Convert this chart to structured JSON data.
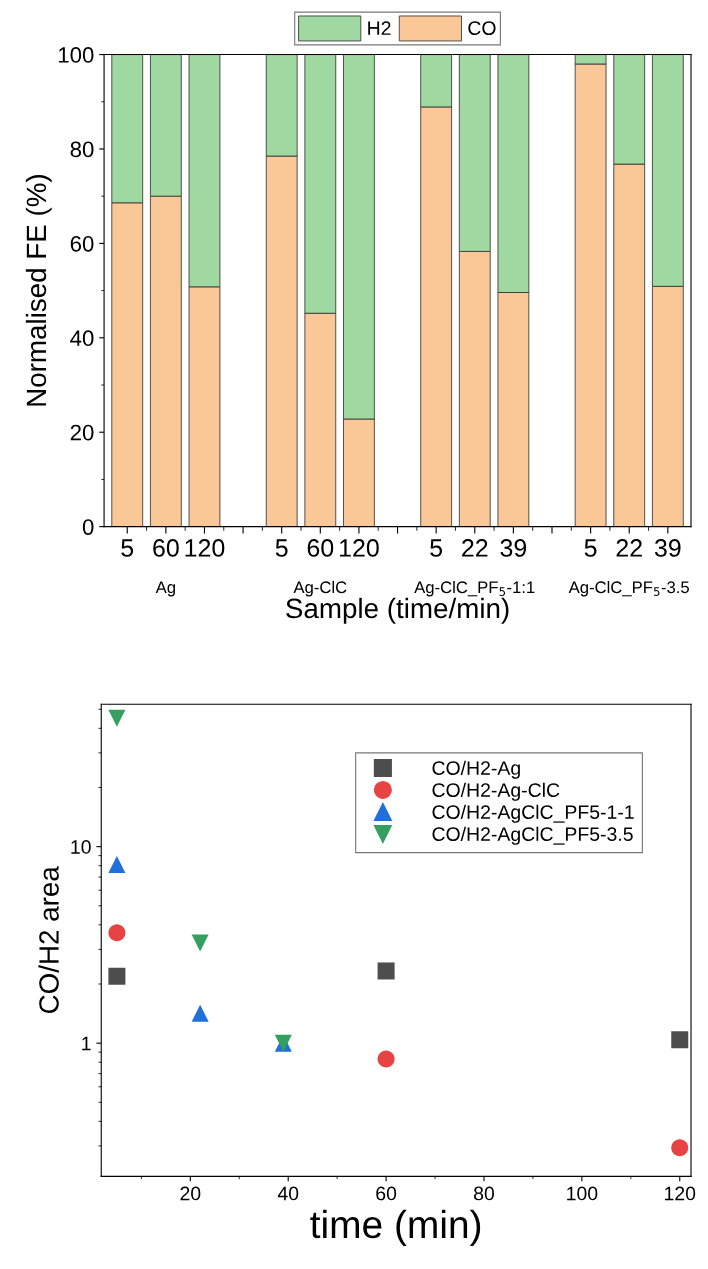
{
  "chart_data": [
    {
      "type": "bar",
      "stacked": true,
      "ylabel": "Normalised FE (%)",
      "xlabel": "Sample (time/min)",
      "categories": [
        "5",
        "60",
        "120",
        null,
        "5",
        "60",
        "120",
        null,
        "5",
        "22",
        "39",
        null,
        "5",
        "22",
        "39"
      ],
      "series": [
        {
          "name": "CO",
          "color": "#f9c896",
          "values": [
            68.6,
            70.0,
            50.8,
            null,
            78.5,
            45.2,
            22.8,
            null,
            88.9,
            58.3,
            49.6,
            null,
            98.0,
            76.8,
            50.9
          ]
        },
        {
          "name": "H2",
          "color": "#9fd8a0",
          "values": [
            31.4,
            30.0,
            49.2,
            null,
            21.5,
            54.8,
            77.2,
            null,
            11.1,
            41.7,
            50.4,
            null,
            2.0,
            23.2,
            49.1
          ]
        }
      ],
      "annotations": [
        "Ag",
        "Ag-ClC",
        "Ag-ClC_PF$_{5}$-1:1",
        "Ag-ClC_PF$_{5}$-3.5"
      ],
      "ylim": [
        0,
        100
      ],
      "yticks": [
        0,
        20,
        40,
        60,
        80,
        100
      ],
      "legend": "top",
      "grid": false
    },
    {
      "type": "scatter",
      "ylabel": "CO/H2 area",
      "xlabel": "time (min)",
      "log": "y",
      "xlim": [
        1.8,
        122.3
      ],
      "xticks": [
        20,
        40,
        60,
        80,
        100,
        120
      ],
      "ylim": [
        0.21,
        53
      ],
      "yticks": [
        1,
        10
      ],
      "legend": "top right",
      "grid": false,
      "series": [
        {
          "name": "CO/H2-Ag",
          "color": "#4d4d4d",
          "marker": "square",
          "x": [
            5,
            60,
            120
          ],
          "values": [
            2.19,
            2.33,
            1.04
          ]
        },
        {
          "name": "CO/H2-Ag-ClC",
          "color": "#e84343",
          "marker": "circle",
          "x": [
            5,
            60,
            120
          ],
          "values": [
            3.65,
            0.83,
            0.294
          ]
        },
        {
          "name": "CO/H2-AgClC_PF5-1-1",
          "color": "#1f6fdc",
          "marker": "triangle",
          "x": [
            5,
            22,
            39
          ],
          "values": [
            8.1,
            1.42,
            1.0
          ]
        },
        {
          "name": "CO/H2-AgClC_PF5-3.5",
          "color": "#33a060",
          "marker": "triangle_down",
          "x": [
            5,
            22,
            39
          ],
          "values": [
            45,
            3.23,
            1.0
          ]
        }
      ]
    }
  ]
}
